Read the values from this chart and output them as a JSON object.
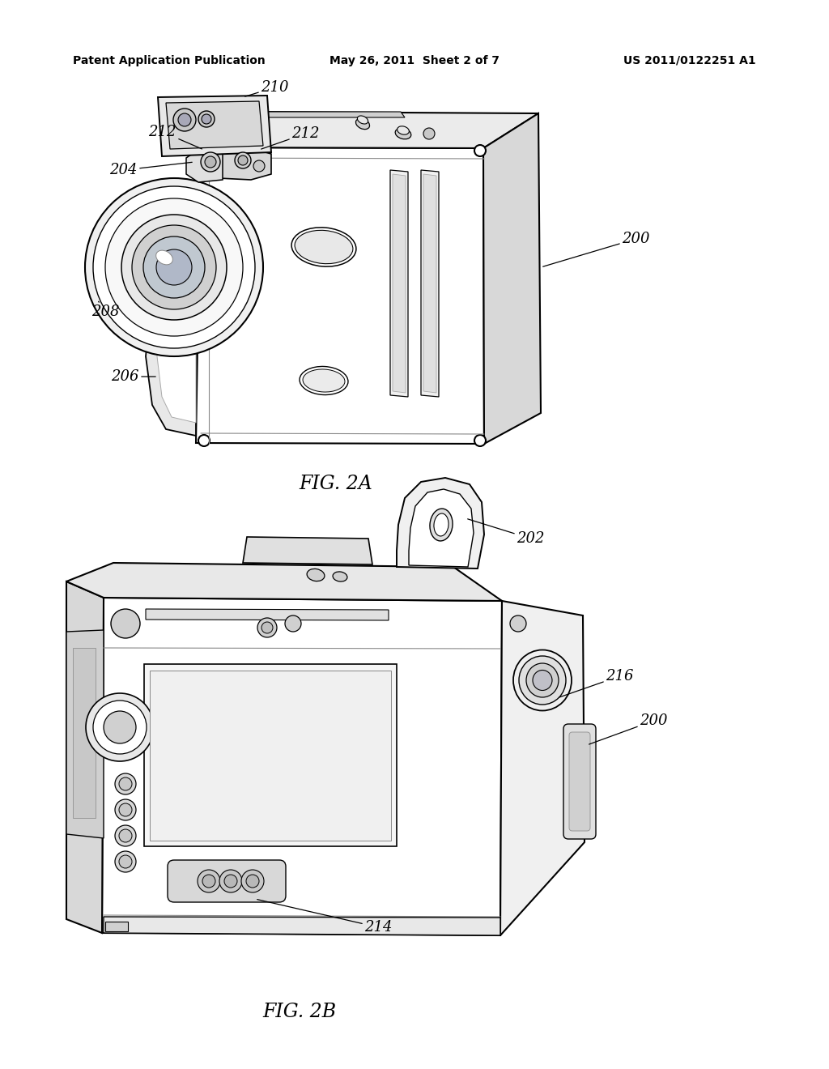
{
  "bg_color": "#ffffff",
  "header_left": "Patent Application Publication",
  "header_center": "May 26, 2011  Sheet 2 of 7",
  "header_right": "US 2011/0122251 A1",
  "fig2a_label": "FIG. 2A",
  "fig2b_label": "FIG. 2B",
  "lw_main": 1.3,
  "lw_detail": 0.9,
  "body_color": "#ffffff",
  "shadow_color": "#e0e0e0",
  "dark_shadow": "#c8c8c8"
}
